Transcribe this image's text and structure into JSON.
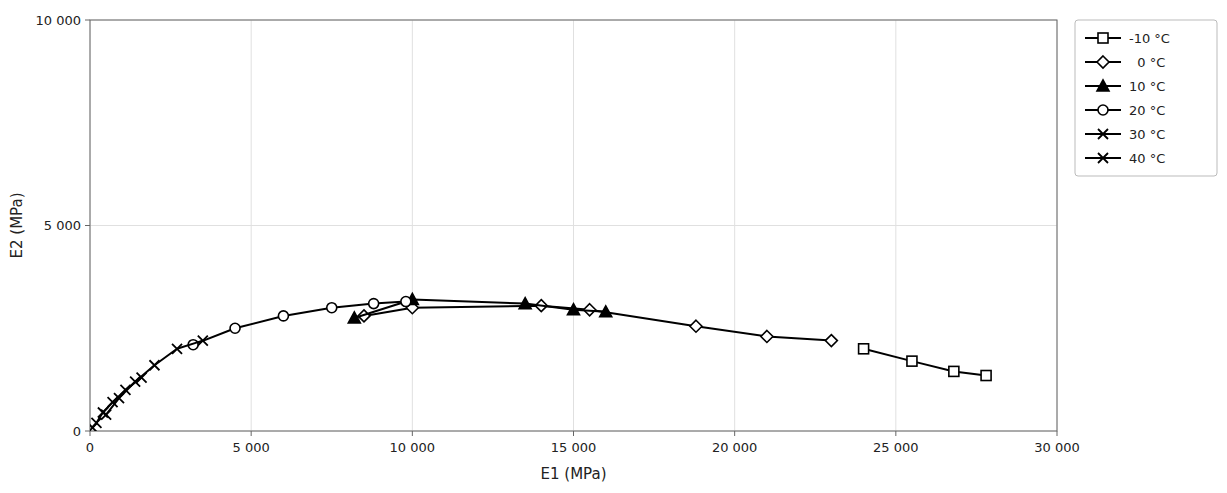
{
  "chart_data": {
    "type": "line",
    "xlabel": "E1 (MPa)",
    "ylabel": "E2 (MPa)",
    "xlim": [
      0,
      30000
    ],
    "ylim": [
      0,
      10000
    ],
    "xticks": [
      0,
      {
        "value": 5000,
        "label": "5 000"
      },
      {
        "value": 10000,
        "label": "10 000"
      },
      {
        "value": 15000,
        "label": "15 000"
      },
      {
        "value": 20000,
        "label": "20 000"
      },
      {
        "value": 25000,
        "label": "25 000"
      },
      {
        "value": 30000,
        "label": "30 000"
      }
    ],
    "yticks": [
      0,
      {
        "value": 5000,
        "label": "5 000"
      },
      {
        "value": 10000,
        "label": "10 000"
      }
    ],
    "grid": true,
    "legend": "right",
    "series": [
      {
        "name": "-10 °C",
        "color": "black",
        "marker": "open-square",
        "x": [
          24000,
          25500,
          26800,
          27800
        ],
        "values": [
          2000,
          1700,
          1450,
          1350
        ]
      },
      {
        "name": "  0 °C",
        "color": "black",
        "marker": "open-diamond",
        "x": [
          8500,
          10000,
          14000,
          15500,
          18800,
          21000,
          23000
        ],
        "values": [
          2800,
          3000,
          3050,
          2950,
          2550,
          2300,
          2200
        ]
      },
      {
        "name": "10 °C",
        "color": "black",
        "marker": "filled-triangle",
        "x": [
          8200,
          10000,
          13500,
          15000,
          16000
        ],
        "values": [
          2750,
          3200,
          3100,
          2950,
          2900
        ]
      },
      {
        "name": "20 °C",
        "color": "black",
        "marker": "open-circle",
        "x": [
          3200,
          4500,
          6000,
          7500,
          8800,
          9800
        ],
        "values": [
          2100,
          2500,
          2800,
          3000,
          3100,
          3150
        ]
      },
      {
        "name": "30 °C",
        "color": "black",
        "marker": "x",
        "x": [
          500,
          900,
          1400,
          2000,
          2700,
          3500
        ],
        "values": [
          400,
          800,
          1200,
          1600,
          2000,
          2200
        ]
      },
      {
        "name": "40 °C",
        "color": "black",
        "marker": "x",
        "x": [
          80,
          200,
          400,
          700,
          1100,
          1600
        ],
        "values": [
          80,
          200,
          450,
          700,
          1000,
          1300
        ]
      }
    ]
  }
}
